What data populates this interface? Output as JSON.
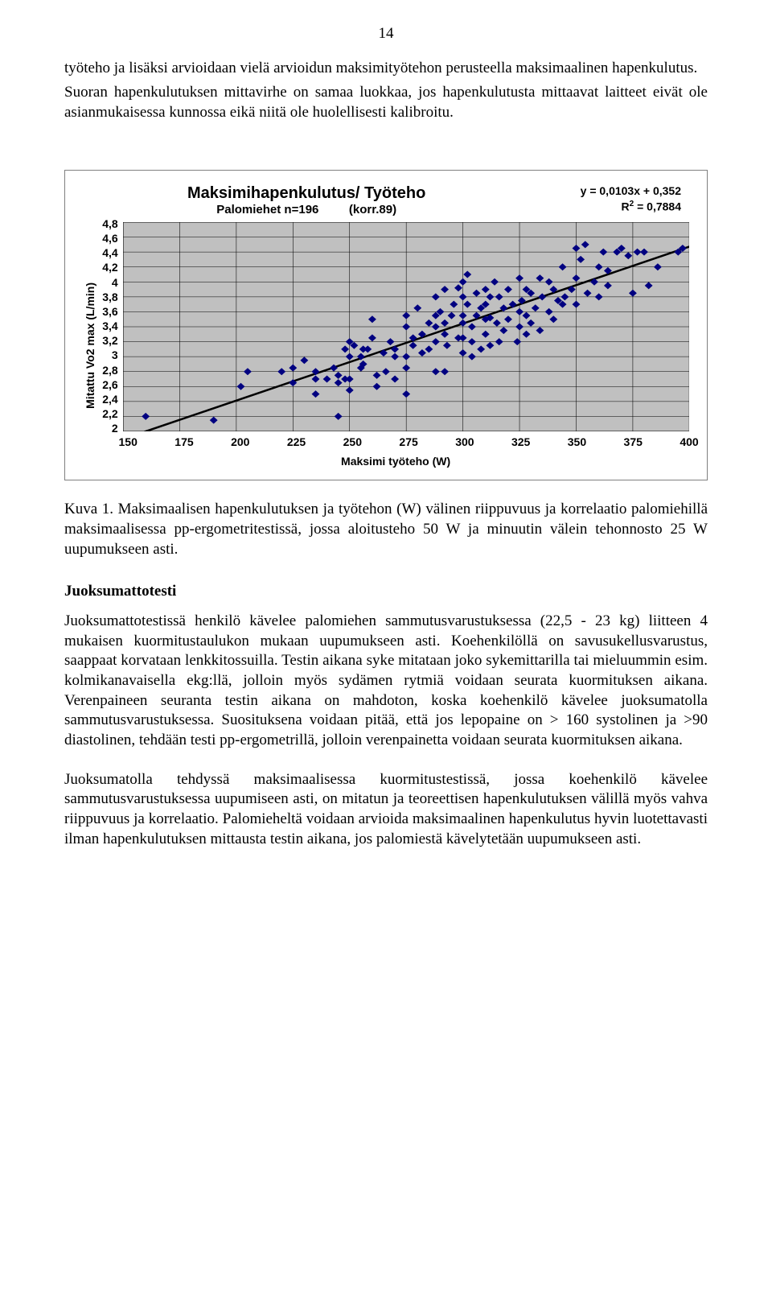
{
  "page_number": "14",
  "para1": "työteho ja lisäksi arvioidaan vielä arvioidun maksimityötehon perusteella maksimaalinen hapenkulutus.",
  "para2": "Suoran hapenkulutuksen mittavirhe on samaa luokkaa, jos hapenkulutusta mittaavat laitteet eivät ole asianmukaisessa kunnossa eikä niitä ole huolellisesti kalibroitu.",
  "chart": {
    "type": "scatter",
    "title_main": "Maksimihapenkulutus/ Työteho",
    "title_sub_left": "Palomiehet n=196",
    "title_sub_right": "(korr.89)",
    "equation_line1": "y = 0,0103x + 0,352",
    "equation_line2_prefix": "R",
    "equation_line2_sup": "2",
    "equation_line2_suffix": " = 0,7884",
    "y_label": "Mitattu Vo2 max (L/min)",
    "x_label": "Maksimi työteho (W)",
    "y_ticks": [
      "4,8",
      "4,6",
      "4,4",
      "4,2",
      "4",
      "3,8",
      "3,6",
      "3,4",
      "3,2",
      "3",
      "2,8",
      "2,6",
      "2,4",
      "2,2",
      "2"
    ],
    "x_ticks": [
      "150",
      "175",
      "200",
      "225",
      "250",
      "275",
      "300",
      "325",
      "350",
      "375",
      "400"
    ],
    "xlim": [
      150,
      400
    ],
    "ylim": [
      2,
      4.8
    ],
    "marker_color": "#000080",
    "trend_color": "#000000",
    "grid_color": "#000000",
    "plot_bg": "#c0c0c0",
    "trend_x1": 150,
    "trend_y1": 1.897,
    "trend_x2": 400,
    "trend_y2": 4.472,
    "data": [
      [
        160,
        2.2
      ],
      [
        190,
        2.15
      ],
      [
        245,
        2.2
      ],
      [
        225,
        2.65
      ],
      [
        220,
        2.8
      ],
      [
        225,
        2.85
      ],
      [
        235,
        2.8
      ],
      [
        235,
        2.5
      ],
      [
        230,
        2.95
      ],
      [
        235,
        2.7
      ],
      [
        240,
        2.7
      ],
      [
        245,
        2.65
      ],
      [
        245,
        2.75
      ],
      [
        248,
        2.7
      ],
      [
        250,
        2.7
      ],
      [
        250,
        2.55
      ],
      [
        250,
        3.0
      ],
      [
        255,
        3.0
      ],
      [
        248,
        3.1
      ],
      [
        256,
        3.1
      ],
      [
        258,
        3.1
      ],
      [
        265,
        3.05
      ],
      [
        270,
        3.0
      ],
      [
        270,
        3.1
      ],
      [
        275,
        3.0
      ],
      [
        275,
        2.85
      ],
      [
        278,
        3.15
      ],
      [
        285,
        3.1
      ],
      [
        288,
        2.8
      ],
      [
        292,
        2.8
      ],
      [
        262,
        2.6
      ],
      [
        275,
        2.5
      ],
      [
        275,
        3.4
      ],
      [
        275,
        3.55
      ],
      [
        278,
        3.25
      ],
      [
        280,
        3.65
      ],
      [
        282,
        3.3
      ],
      [
        285,
        3.45
      ],
      [
        288,
        3.55
      ],
      [
        288,
        3.4
      ],
      [
        288,
        3.2
      ],
      [
        290,
        3.6
      ],
      [
        292,
        3.45
      ],
      [
        292,
        3.3
      ],
      [
        300,
        3.05
      ],
      [
        300,
        3.25
      ],
      [
        300,
        3.55
      ],
      [
        300,
        3.8
      ],
      [
        300,
        3.45
      ],
      [
        302,
        3.7
      ],
      [
        304,
        3.4
      ],
      [
        304,
        3.2
      ],
      [
        306,
        3.55
      ],
      [
        308,
        3.1
      ],
      [
        308,
        3.65
      ],
      [
        310,
        3.3
      ],
      [
        310,
        3.5
      ],
      [
        312,
        3.8
      ],
      [
        312,
        3.15
      ],
      [
        315,
        3.45
      ],
      [
        318,
        3.65
      ],
      [
        318,
        3.35
      ],
      [
        320,
        3.5
      ],
      [
        322,
        3.7
      ],
      [
        325,
        3.4
      ],
      [
        325,
        3.6
      ],
      [
        325,
        4.05
      ],
      [
        328,
        3.55
      ],
      [
        328,
        3.3
      ],
      [
        330,
        3.85
      ],
      [
        332,
        3.65
      ],
      [
        335,
        3.8
      ],
      [
        338,
        3.6
      ],
      [
        340,
        3.5
      ],
      [
        300,
        4.0
      ],
      [
        302,
        4.1
      ],
      [
        314,
        4.0
      ],
      [
        340,
        3.9
      ],
      [
        342,
        3.75
      ],
      [
        345,
        3.8
      ],
      [
        348,
        3.9
      ],
      [
        350,
        3.7
      ],
      [
        350,
        4.05
      ],
      [
        352,
        4.3
      ],
      [
        355,
        3.85
      ],
      [
        358,
        4.0
      ],
      [
        360,
        3.8
      ],
      [
        362,
        4.4
      ],
      [
        364,
        3.95
      ],
      [
        368,
        4.4
      ],
      [
        370,
        4.45
      ],
      [
        373,
        4.35
      ],
      [
        375,
        3.85
      ],
      [
        377,
        4.4
      ],
      [
        380,
        4.4
      ],
      [
        382,
        3.95
      ],
      [
        395,
        4.4
      ],
      [
        397,
        4.45
      ],
      [
        260,
        3.25
      ],
      [
        268,
        3.2
      ],
      [
        266,
        2.8
      ],
      [
        250,
        3.2
      ],
      [
        256,
        2.9
      ],
      [
        243,
        2.85
      ],
      [
        295,
        3.55
      ],
      [
        296,
        3.7
      ],
      [
        298,
        3.25
      ],
      [
        304,
        3.0
      ],
      [
        312,
        3.52
      ],
      [
        316,
        3.2
      ],
      [
        320,
        3.9
      ],
      [
        324,
        3.2
      ],
      [
        255,
        2.85
      ],
      [
        262,
        2.75
      ],
      [
        270,
        2.7
      ],
      [
        334,
        4.05
      ],
      [
        338,
        4.0
      ],
      [
        344,
        4.2
      ],
      [
        288,
        3.8
      ],
      [
        292,
        3.9
      ],
      [
        330,
        3.45
      ],
      [
        334,
        3.35
      ],
      [
        205,
        2.8
      ],
      [
        350,
        4.45
      ],
      [
        354,
        4.5
      ],
      [
        360,
        4.2
      ],
      [
        364,
        4.15
      ],
      [
        260,
        3.5
      ],
      [
        386,
        4.2
      ],
      [
        344,
        3.7
      ],
      [
        310,
        3.7
      ],
      [
        310,
        3.9
      ],
      [
        326,
        3.75
      ],
      [
        328,
        3.9
      ],
      [
        282,
        3.05
      ],
      [
        252,
        3.15
      ],
      [
        293,
        3.15
      ],
      [
        316,
        3.8
      ],
      [
        306,
        3.85
      ],
      [
        298,
        3.92
      ],
      [
        202,
        2.6
      ]
    ]
  },
  "caption": "Kuva 1. Maksimaalisen hapenkulutuksen ja työtehon (W) välinen riippuvuus ja korrelaatio palomiehillä maksimaalisessa pp-ergometritestissä, jossa aloitusteho 50 W ja minuutin välein tehonnosto 25 W uupumukseen asti.",
  "section_heading": "Juoksumattotesti",
  "para3": "Juoksumattotestissä henkilö kävelee palomiehen sammutusvarustuksessa (22,5 - 23 kg) liitteen 4 mukaisen kuormitustaulukon mukaan uupumukseen asti. Koehenkilöllä on savusukellusvarustus, saappaat korvataan lenkkitossuilla. Testin aikana syke mitataan joko sykemittarilla tai mieluummin esim. kolmikanavaisella ekg:llä, jolloin myös sydämen rytmiä voidaan seurata kuormituksen aikana. Verenpaineen seuranta testin aikana on mahdoton, koska koehenkilö kävelee juoksumatolla sammutusvarustuksessa. Suosituksena voidaan pitää, että jos lepopaine on > 160 systolinen ja >90 diastolinen, tehdään testi pp-ergometrillä, jolloin verenpainetta voidaan seurata kuormituksen aikana.",
  "para4": "Juoksumatolla tehdyssä maksimaalisessa kuormitustestissä, jossa koehenkilö kävelee sammutusvarustuksessa uupumiseen asti, on mitatun ja teoreettisen hapenkulutuksen välillä myös vahva riippuvuus ja korrelaatio. Palomieheltä voidaan arvioida maksimaalinen hapenkulutus hyvin luotettavasti ilman hapenkulutuksen mittausta testin aikana, jos palomiestä kävelytetään uupumukseen asti."
}
